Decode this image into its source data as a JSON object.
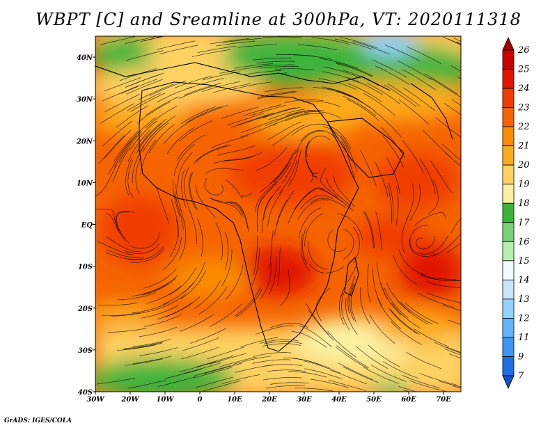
{
  "title": "WBPT [C] and Sreamline at 300hPa, VT: 2020111318",
  "footer": "GrADS: IGES/COLA",
  "map": {
    "lon_range": [
      -30,
      75
    ],
    "lat_range": [
      -40,
      45
    ],
    "lon_ticks": [
      {
        "value": -30,
        "label": "30W"
      },
      {
        "value": -20,
        "label": "20W"
      },
      {
        "value": -10,
        "label": "10W"
      },
      {
        "value": 0,
        "label": "0"
      },
      {
        "value": 10,
        "label": "10E"
      },
      {
        "value": 20,
        "label": "20E"
      },
      {
        "value": 30,
        "label": "30E"
      },
      {
        "value": 40,
        "label": "40E"
      },
      {
        "value": 50,
        "label": "50E"
      },
      {
        "value": 60,
        "label": "60E"
      },
      {
        "value": 70,
        "label": "70E"
      }
    ],
    "lat_ticks": [
      {
        "value": 40,
        "label": "40N"
      },
      {
        "value": 30,
        "label": "30N"
      },
      {
        "value": 20,
        "label": "20N"
      },
      {
        "value": 10,
        "label": "10N"
      },
      {
        "value": 0,
        "label": "EQ"
      },
      {
        "value": -10,
        "label": "10S"
      },
      {
        "value": -20,
        "label": "20S"
      },
      {
        "value": -30,
        "label": "30S"
      },
      {
        "value": -40,
        "label": "40S"
      }
    ]
  },
  "colorbar": {
    "labels": [
      "26",
      "25",
      "24",
      "23",
      "22",
      "21",
      "20",
      "19",
      "18",
      "17",
      "16",
      "15",
      "14",
      "13",
      "12",
      "11",
      "9",
      "7"
    ],
    "colors": [
      "#a50000",
      "#c80000",
      "#e11600",
      "#f03c00",
      "#f56400",
      "#fa8c00",
      "#fcaa1e",
      "#fdd264",
      "#fbf0a0",
      "#3cb43c",
      "#78d278",
      "#b4f0b4",
      "#f0fcff",
      "#c8e6fa",
      "#96d2fa",
      "#64b4fa",
      "#3c96f5",
      "#1e6ee6",
      "#1450c8"
    ]
  }
}
